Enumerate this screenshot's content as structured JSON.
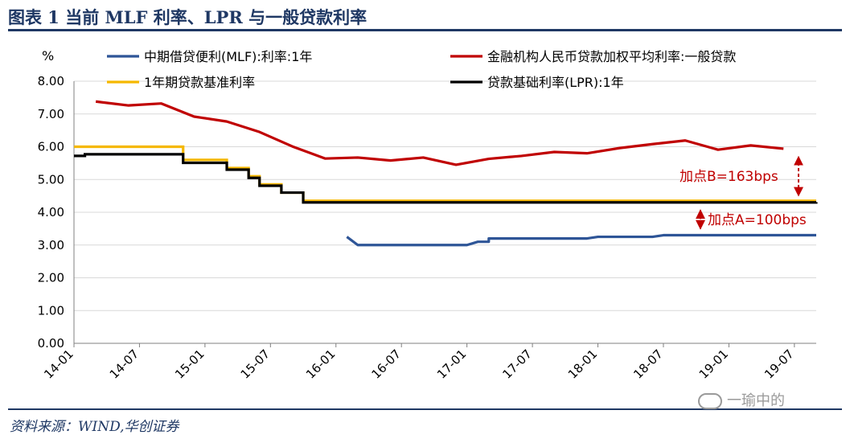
{
  "title": "图表 1   当前 MLF 利率、LPR 与一般贷款利率",
  "source": "资料来源：WIND,华创证券",
  "watermark": "一瑜中的",
  "chart_data": {
    "type": "line",
    "ylabel": "%",
    "ylim": [
      0,
      8
    ],
    "yticks": [
      "0.00",
      "1.00",
      "2.00",
      "3.00",
      "4.00",
      "5.00",
      "6.00",
      "7.00",
      "8.00"
    ],
    "xlim": [
      "2014-01",
      "2019-09"
    ],
    "xticks": [
      {
        "date": "2014-01",
        "label": "14-01"
      },
      {
        "date": "2014-07",
        "label": "14-07"
      },
      {
        "date": "2015-01",
        "label": "15-01"
      },
      {
        "date": "2015-07",
        "label": "15-07"
      },
      {
        "date": "2016-01",
        "label": "16-01"
      },
      {
        "date": "2016-07",
        "label": "16-07"
      },
      {
        "date": "2017-01",
        "label": "17-01"
      },
      {
        "date": "2017-07",
        "label": "17-07"
      },
      {
        "date": "2018-01",
        "label": "18-01"
      },
      {
        "date": "2018-07",
        "label": "18-07"
      },
      {
        "date": "2019-01",
        "label": "19-01"
      },
      {
        "date": "2019-07",
        "label": "19-07"
      }
    ],
    "grid": true,
    "series": [
      {
        "name": "中期借贷便利(MLF):利率:1年",
        "color": "#2e5597",
        "step": false,
        "points": [
          [
            "2016-02",
            3.25
          ],
          [
            "2016-03",
            3.0
          ],
          [
            "2016-06",
            3.0
          ],
          [
            "2016-12",
            3.0
          ],
          [
            "2017-01",
            3.0
          ],
          [
            "2017-02",
            3.1
          ],
          [
            "2017-03",
            3.1
          ],
          [
            "2017-03",
            3.2
          ],
          [
            "2017-12",
            3.2
          ],
          [
            "2018-01",
            3.25
          ],
          [
            "2018-06",
            3.25
          ],
          [
            "2018-07",
            3.3
          ],
          [
            "2019-09",
            3.3
          ]
        ]
      },
      {
        "name": "金融机构人民币贷款加权平均利率:一般贷款",
        "color": "#c00000",
        "step": false,
        "points": [
          [
            "2014-03",
            7.38
          ],
          [
            "2014-06",
            7.26
          ],
          [
            "2014-09",
            7.32
          ],
          [
            "2014-12",
            6.92
          ],
          [
            "2015-03",
            6.77
          ],
          [
            "2015-06",
            6.45
          ],
          [
            "2015-09",
            6.01
          ],
          [
            "2015-12",
            5.64
          ],
          [
            "2016-03",
            5.67
          ],
          [
            "2016-06",
            5.58
          ],
          [
            "2016-09",
            5.67
          ],
          [
            "2016-12",
            5.45
          ],
          [
            "2017-03",
            5.63
          ],
          [
            "2017-06",
            5.72
          ],
          [
            "2017-09",
            5.84
          ],
          [
            "2017-12",
            5.8
          ],
          [
            "2018-03",
            5.96
          ],
          [
            "2018-06",
            6.08
          ],
          [
            "2018-09",
            6.19
          ],
          [
            "2018-12",
            5.91
          ],
          [
            "2019-03",
            6.04
          ],
          [
            "2019-06",
            5.94
          ]
        ]
      },
      {
        "name": "1年期贷款基准利率",
        "color": "#f5b800",
        "step": true,
        "points": [
          [
            "2014-01",
            6.0
          ],
          [
            "2014-11",
            5.6
          ],
          [
            "2015-03",
            5.35
          ],
          [
            "2015-05",
            5.1
          ],
          [
            "2015-06",
            4.85
          ],
          [
            "2015-08",
            4.6
          ],
          [
            "2015-10",
            4.35
          ],
          [
            "2019-09",
            4.35
          ]
        ]
      },
      {
        "name": "贷款基础利率(LPR):1年",
        "color": "#000000",
        "step": true,
        "points": [
          [
            "2014-01",
            5.72
          ],
          [
            "2014-02",
            5.77
          ],
          [
            "2014-11",
            5.51
          ],
          [
            "2015-03",
            5.3
          ],
          [
            "2015-05",
            5.05
          ],
          [
            "2015-06",
            4.81
          ],
          [
            "2015-08",
            4.6
          ],
          [
            "2015-10",
            4.3
          ],
          [
            "2019-09",
            4.31
          ]
        ]
      }
    ],
    "annotations": [
      {
        "text": "加点B=163bps",
        "from": 5.94,
        "to": 4.31,
        "date": "2019-07"
      },
      {
        "text": "加点A=100bps",
        "from": 4.31,
        "to": 3.3,
        "date": "2019-07"
      }
    ]
  }
}
